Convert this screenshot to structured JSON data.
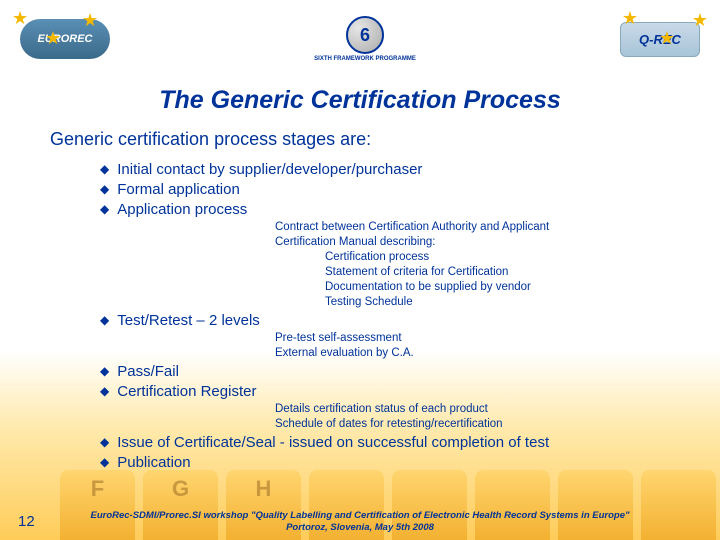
{
  "header": {
    "logo_left": "EUROREC",
    "logo_center_num": "6",
    "logo_center_text": "SIXTH FRAMEWORK\nPROGRAMME",
    "logo_right": "Q-REC",
    "star_color": "#f5b800"
  },
  "title": "The Generic Certification Process",
  "subtitle": "Generic certification process stages are:",
  "bullets": [
    {
      "text": "Initial contact by supplier/developer/purchaser",
      "sub": [],
      "deep": []
    },
    {
      "text": "Formal application",
      "sub": [],
      "deep": []
    },
    {
      "text": "Application process",
      "sub": [
        "Contract between Certification Authority and Applicant",
        "Certification Manual describing:"
      ],
      "deep": [
        "Certification process",
        "Statement of criteria for Certification",
        "Documentation to be supplied by vendor",
        "Testing Schedule"
      ]
    },
    {
      "text": "Test/Retest – 2 levels",
      "sub": [
        "Pre-test self-assessment",
        "External evaluation by C.A."
      ],
      "deep": []
    },
    {
      "text": "Pass/Fail",
      "sub": [],
      "deep": []
    },
    {
      "text": "Certification Register",
      "sub": [
        "Details certification status of each product",
        "Schedule of dates for retesting/recertification"
      ],
      "deep": []
    },
    {
      "text": "Issue of Certificate/Seal - issued on successful completion of test",
      "sub": [],
      "deep": []
    },
    {
      "text": "Publication",
      "sub": [],
      "deep": []
    }
  ],
  "footer": {
    "line1": "EuroRec-SDMI/Prorec.SI workshop \"Quality Labelling and Certification of Electronic Health Record Systems in Europe\"",
    "line2": "Portoroz, Slovenia, May 5th 2008"
  },
  "slide_number": "12",
  "tabs": [
    "F",
    "G",
    "H",
    "",
    "",
    "",
    "",
    ""
  ],
  "colors": {
    "primary": "#003399",
    "accent": "#f5b800"
  }
}
